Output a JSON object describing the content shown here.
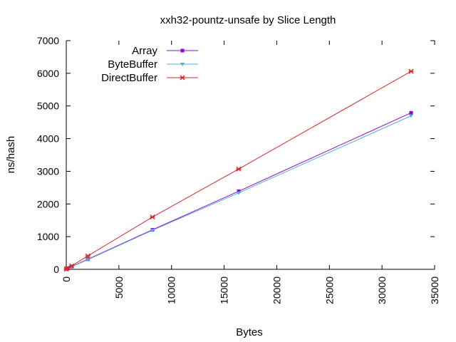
{
  "chart_data": {
    "type": "line",
    "title": "xxh32-pountz-unsafe by Slice Length",
    "xlabel": "Bytes",
    "ylabel": "ns/hash",
    "xlim": [
      0,
      35000
    ],
    "ylim": [
      0,
      7000
    ],
    "x_ticks": [
      0,
      5000,
      10000,
      15000,
      20000,
      25000,
      30000,
      35000
    ],
    "y_ticks": [
      0,
      1000,
      2000,
      3000,
      4000,
      5000,
      6000,
      7000
    ],
    "grid": false,
    "legend_position": "top-left",
    "series": [
      {
        "name": "Array",
        "color": "#9400d3",
        "marker": "square",
        "x": [
          0,
          32,
          128,
          512,
          2048,
          8192,
          16384,
          32768
        ],
        "y": [
          5,
          10,
          35,
          85,
          310,
          1210,
          2390,
          4790
        ]
      },
      {
        "name": "ByteBuffer",
        "color": "#4eb3d3",
        "marker": "triangle-down",
        "x": [
          0,
          32,
          128,
          512,
          2048,
          8192,
          16384,
          32768
        ],
        "y": [
          5,
          10,
          33,
          80,
          295,
          1195,
          2340,
          4700
        ]
      },
      {
        "name": "DirectBuffer",
        "color": "#d62728",
        "marker": "star",
        "x": [
          0,
          32,
          128,
          512,
          2048,
          8192,
          16384,
          32768
        ],
        "y": [
          5,
          15,
          45,
          105,
          410,
          1600,
          3070,
          6060
        ]
      }
    ]
  }
}
